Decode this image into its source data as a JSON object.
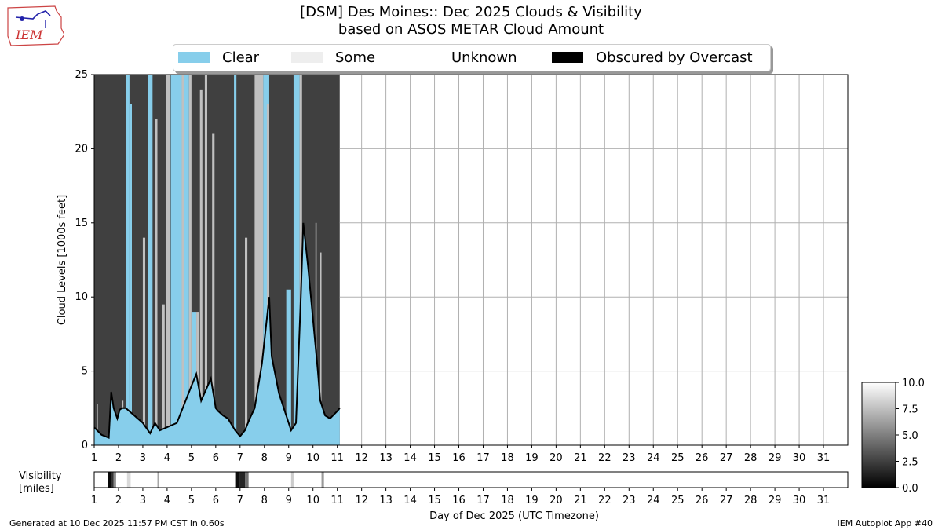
{
  "title_line1": "[DSM] Des Moines:: Dec 2025 Clouds & Visibility",
  "title_line2": "based on ASOS METAR Cloud Amount",
  "logo_text": "IEM",
  "legend": [
    {
      "label": "Clear",
      "color": "#87ceeb"
    },
    {
      "label": "Some",
      "color": "#eeeeee"
    },
    {
      "label": "Unknown",
      "color": "#ffffff"
    },
    {
      "label": "Obscured by Overcast",
      "color": "#000000"
    }
  ],
  "footer_left": "Generated at 10 Dec 2025 11:57 PM CST in 0.60s",
  "footer_right": "IEM Autoplot App #40",
  "chart_data": {
    "type": "area",
    "title": "[DSM] Des Moines:: Dec 2025 Clouds & Visibility",
    "ylabel": "Cloud Levels [1000s feet]",
    "xlabel": "Day of Dec 2025 (UTC Timezone)",
    "ylim": [
      0,
      25
    ],
    "xlim": [
      1,
      32
    ],
    "yticks": [
      0,
      5,
      10,
      15,
      20,
      25
    ],
    "xticks": [
      1,
      2,
      3,
      4,
      5,
      6,
      7,
      8,
      9,
      10,
      11,
      12,
      13,
      14,
      15,
      16,
      17,
      18,
      19,
      20,
      21,
      22,
      23,
      24,
      25,
      26,
      27,
      28,
      29,
      30,
      31
    ],
    "colors": {
      "clear": "#87ceeb",
      "overcast": "#404040",
      "some": "#c0c0c0",
      "edge": "#000000"
    },
    "data_end_day": 11.1,
    "base_curve": [
      [
        1.0,
        1.2
      ],
      [
        1.3,
        0.7
      ],
      [
        1.6,
        0.5
      ],
      [
        1.7,
        3.6
      ],
      [
        1.8,
        2.5
      ],
      [
        1.95,
        1.8
      ],
      [
        2.05,
        2.4
      ],
      [
        2.15,
        2.5
      ],
      [
        2.3,
        2.5
      ],
      [
        3.0,
        1.5
      ],
      [
        3.3,
        0.8
      ],
      [
        3.5,
        1.5
      ],
      [
        3.7,
        1.0
      ],
      [
        4.4,
        1.5
      ],
      [
        5.0,
        4.0
      ],
      [
        5.2,
        4.8
      ],
      [
        5.4,
        3.0
      ],
      [
        5.8,
        4.5
      ],
      [
        6.0,
        2.5
      ],
      [
        6.1,
        2.3
      ],
      [
        6.3,
        2.0
      ],
      [
        6.5,
        1.8
      ],
      [
        6.8,
        1.0
      ],
      [
        7.0,
        0.6
      ],
      [
        7.2,
        1.0
      ],
      [
        7.4,
        1.8
      ],
      [
        7.6,
        2.5
      ],
      [
        7.9,
        5.5
      ],
      [
        8.2,
        10.0
      ],
      [
        8.3,
        6.0
      ],
      [
        8.6,
        3.5
      ],
      [
        8.8,
        2.5
      ],
      [
        9.0,
        1.5
      ],
      [
        9.1,
        1.0
      ],
      [
        9.3,
        1.5
      ],
      [
        9.5,
        10.0
      ],
      [
        9.6,
        15.0
      ],
      [
        9.8,
        12.0
      ],
      [
        10.2,
        5.0
      ],
      [
        10.3,
        3.0
      ],
      [
        10.5,
        2.0
      ],
      [
        10.7,
        1.8
      ],
      [
        11.0,
        2.3
      ],
      [
        11.1,
        2.5
      ]
    ],
    "clear_columns": [
      [
        2.3,
        2.45,
        25
      ],
      [
        2.45,
        2.55,
        23
      ],
      [
        3.2,
        3.4,
        25
      ],
      [
        4.15,
        4.6,
        25
      ],
      [
        4.7,
        4.9,
        25
      ],
      [
        5.0,
        5.2,
        9
      ],
      [
        6.75,
        6.85,
        25
      ],
      [
        7.95,
        8.2,
        25
      ],
      [
        8.9,
        9.1,
        10.5
      ],
      [
        9.2,
        9.45,
        25
      ]
    ],
    "some_columns": [
      [
        1.1,
        1.15,
        2.8
      ],
      [
        2.15,
        2.2,
        3.0
      ],
      [
        3.0,
        3.1,
        14.0
      ],
      [
        3.5,
        3.6,
        22.0
      ],
      [
        3.8,
        3.9,
        9.5
      ],
      [
        3.95,
        4.1,
        25
      ],
      [
        4.6,
        4.7,
        25
      ],
      [
        4.9,
        5.0,
        25
      ],
      [
        5.2,
        5.3,
        9.0
      ],
      [
        5.35,
        5.45,
        24.0
      ],
      [
        5.55,
        5.65,
        25
      ],
      [
        5.85,
        5.95,
        21.0
      ],
      [
        7.2,
        7.3,
        14.0
      ],
      [
        7.6,
        7.95,
        25
      ],
      [
        8.1,
        8.2,
        23.0
      ],
      [
        9.45,
        9.55,
        25
      ],
      [
        10.1,
        10.15,
        15.0
      ],
      [
        10.3,
        10.35,
        13.0
      ]
    ],
    "visibility_colorbar": {
      "min": 0.0,
      "max": 10.0,
      "ticks": [
        0.0,
        2.5,
        5.0,
        7.5,
        10.0
      ],
      "label": "Visibility\n[miles]"
    },
    "visibility_bands": [
      [
        1.55,
        1.68,
        0.3
      ],
      [
        1.68,
        1.8,
        2.0
      ],
      [
        1.8,
        1.9,
        5.5
      ],
      [
        2.35,
        2.5,
        8.5
      ],
      [
        3.6,
        3.66,
        6.5
      ],
      [
        6.8,
        7.0,
        0.5
      ],
      [
        7.0,
        7.2,
        1.5
      ],
      [
        7.2,
        7.35,
        4.5
      ],
      [
        9.1,
        9.2,
        8.0
      ],
      [
        10.35,
        10.45,
        6.0
      ]
    ]
  },
  "vis_label_line1": "Visibility",
  "vis_label_line2": "[miles]"
}
